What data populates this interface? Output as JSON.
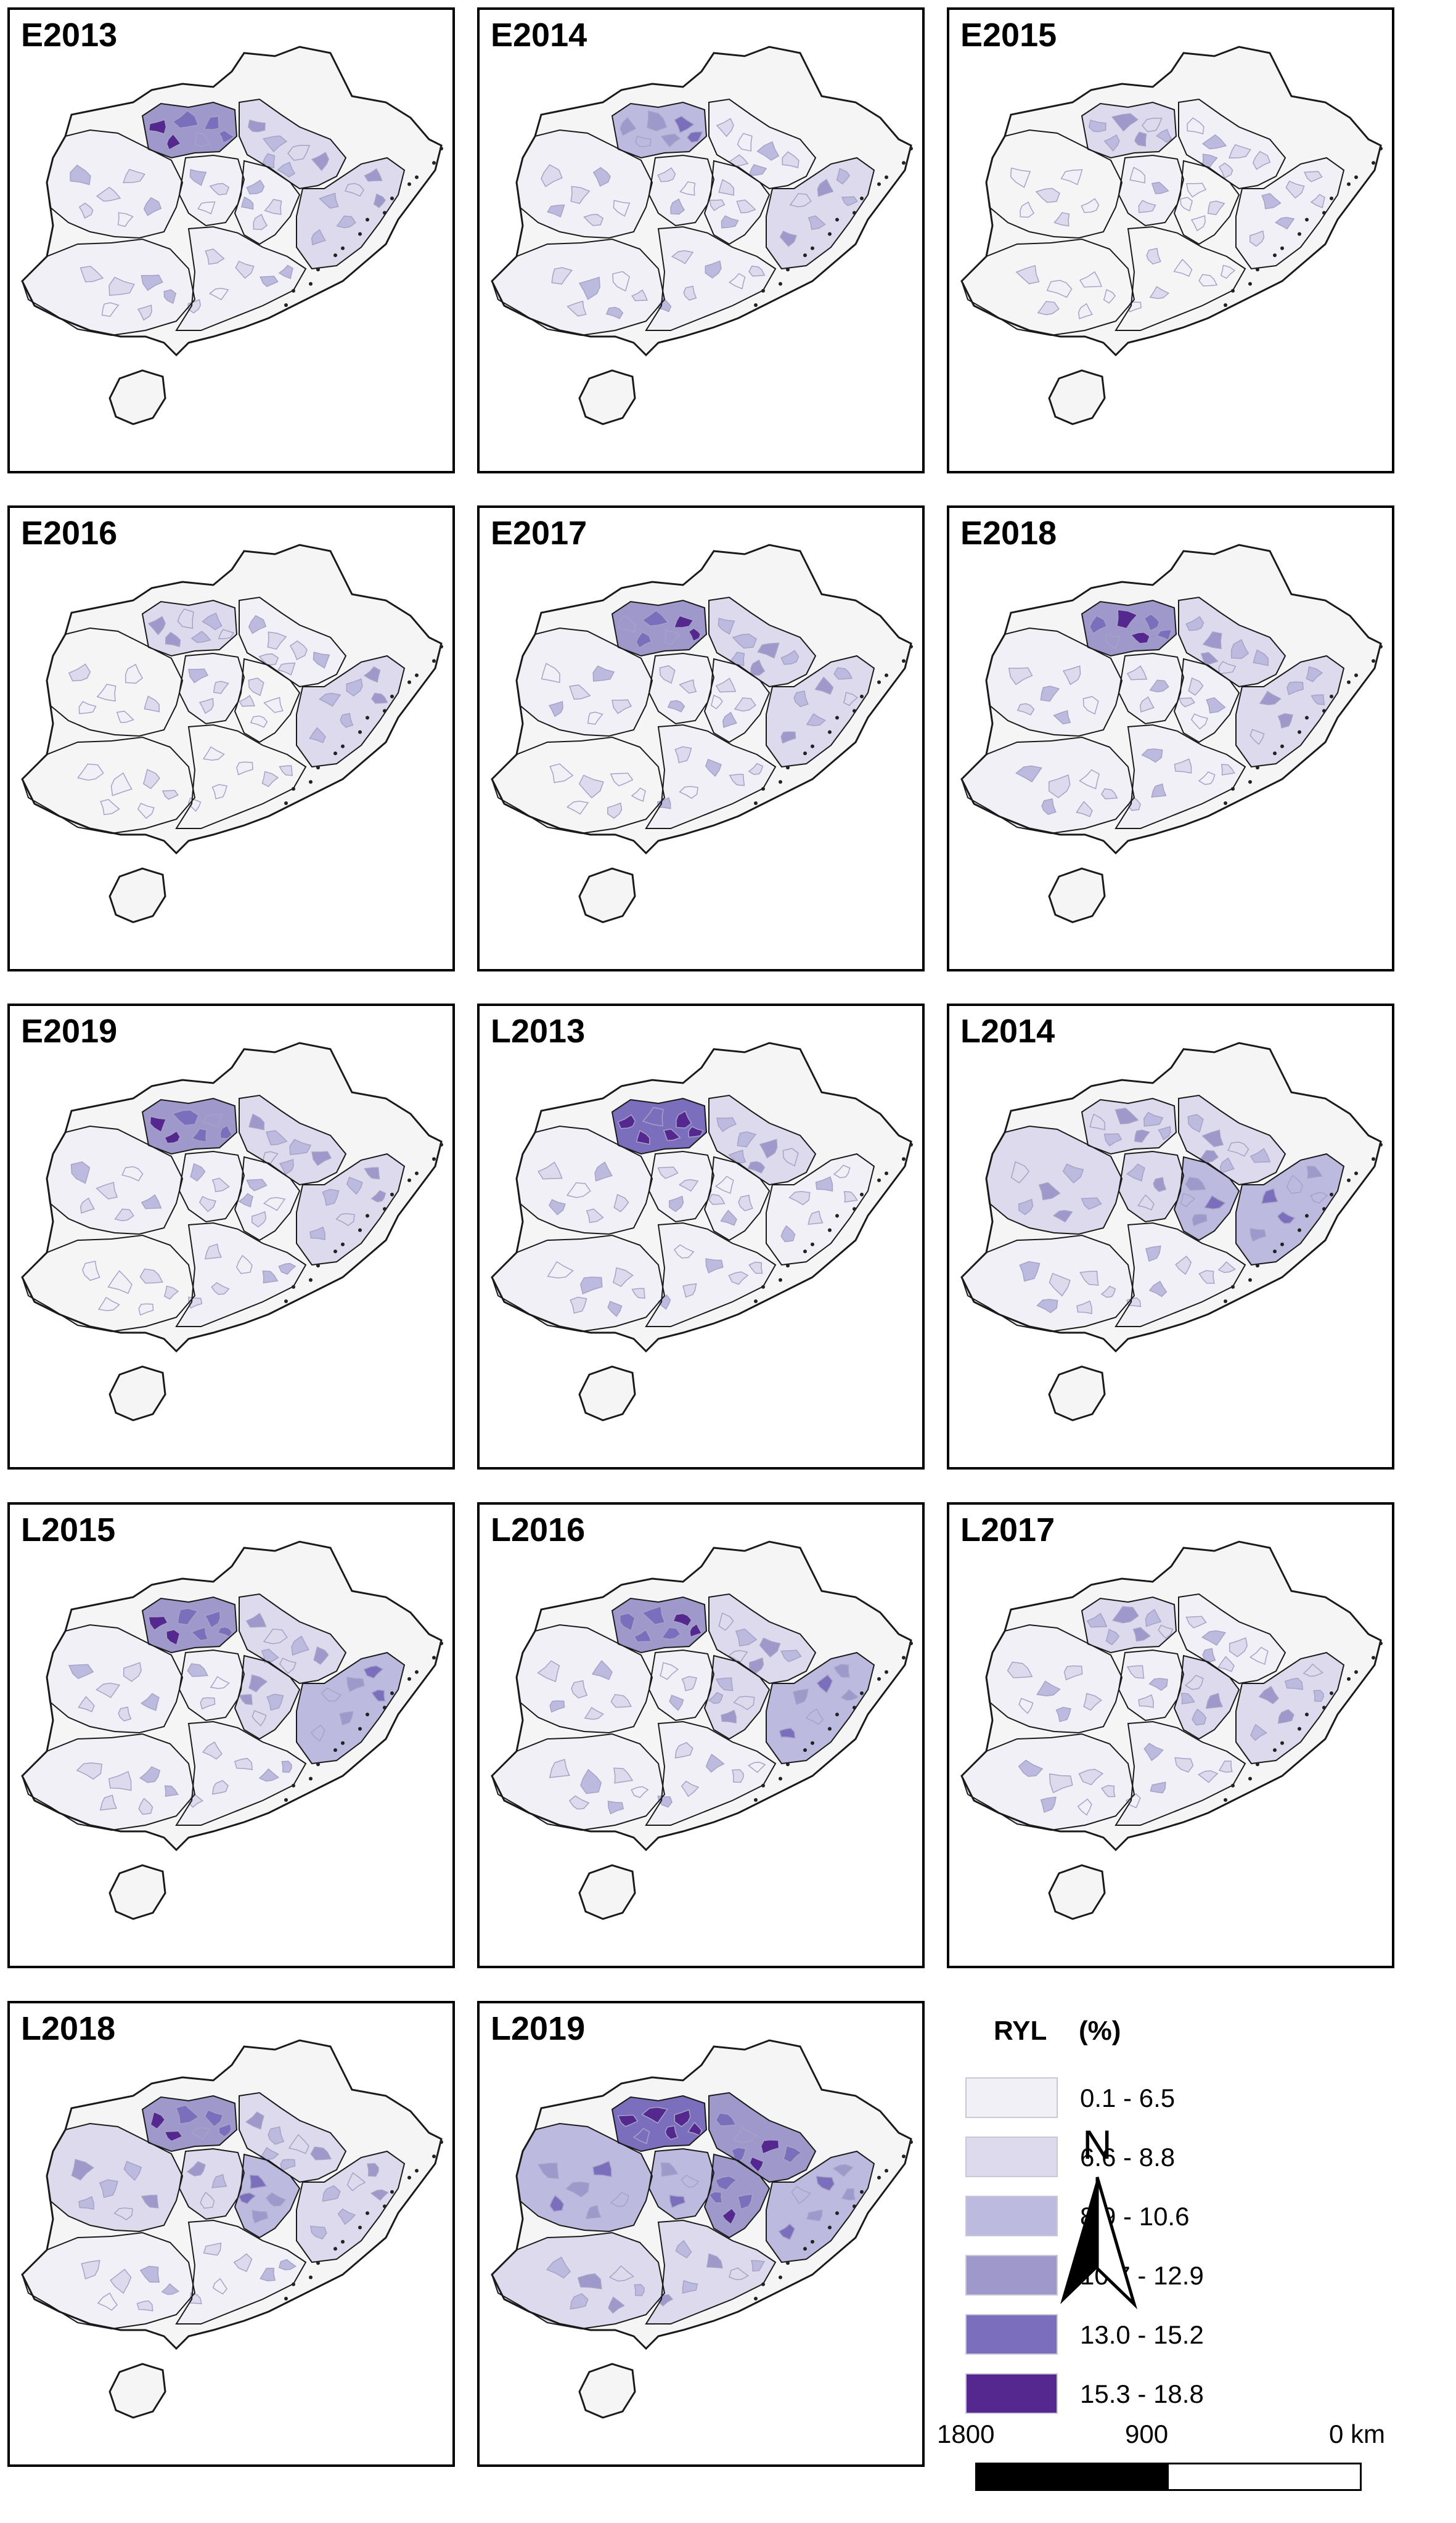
{
  "panels": [
    {
      "label": "E2013",
      "fills": {
        "a": 4,
        "b": 2,
        "c": 1,
        "d": 1,
        "e": 1,
        "f": 1,
        "g": 2,
        "h": 1
      }
    },
    {
      "label": "E2014",
      "fills": {
        "a": 3,
        "b": 1,
        "c": 1,
        "d": 1,
        "e": 1,
        "f": 1,
        "g": 2,
        "h": 1
      }
    },
    {
      "label": "E2015",
      "fills": {
        "a": 2,
        "b": 1,
        "c": 0,
        "d": 1,
        "e": 0,
        "f": 0,
        "g": 1,
        "h": 0
      }
    },
    {
      "label": "E2016",
      "fills": {
        "a": 2,
        "b": 1,
        "c": 0,
        "d": 1,
        "e": 0,
        "f": 0,
        "g": 2,
        "h": 0
      }
    },
    {
      "label": "E2017",
      "fills": {
        "a": 4,
        "b": 2,
        "c": 1,
        "d": 1,
        "e": 1,
        "f": 0,
        "g": 2,
        "h": 1
      }
    },
    {
      "label": "E2018",
      "fills": {
        "a": 4,
        "b": 2,
        "c": 1,
        "d": 1,
        "e": 1,
        "f": 1,
        "g": 2,
        "h": 1
      }
    },
    {
      "label": "E2019",
      "fills": {
        "a": 4,
        "b": 2,
        "c": 1,
        "d": 1,
        "e": 1,
        "f": 0,
        "g": 2,
        "h": 1
      }
    },
    {
      "label": "L2013",
      "fills": {
        "a": 5,
        "b": 2,
        "c": 1,
        "d": 1,
        "e": 1,
        "f": 1,
        "g": 1,
        "h": 1
      }
    },
    {
      "label": "L2014",
      "fills": {
        "a": 2,
        "b": 2,
        "c": 2,
        "d": 2,
        "e": 3,
        "f": 1,
        "g": 3,
        "h": 1
      }
    },
    {
      "label": "L2015",
      "fills": {
        "a": 4,
        "b": 2,
        "c": 1,
        "d": 1,
        "e": 2,
        "f": 1,
        "g": 3,
        "h": 1
      }
    },
    {
      "label": "L2016",
      "fills": {
        "a": 4,
        "b": 2,
        "c": 1,
        "d": 1,
        "e": 2,
        "f": 1,
        "g": 3,
        "h": 1
      }
    },
    {
      "label": "L2017",
      "fills": {
        "a": 2,
        "b": 1,
        "c": 1,
        "d": 1,
        "e": 2,
        "f": 1,
        "g": 2,
        "h": 1
      }
    },
    {
      "label": "L2018",
      "fills": {
        "a": 4,
        "b": 2,
        "c": 2,
        "d": 2,
        "e": 3,
        "f": 1,
        "g": 2,
        "h": 1
      }
    },
    {
      "label": "L2019",
      "fills": {
        "a": 5,
        "b": 4,
        "c": 3,
        "d": 3,
        "e": 4,
        "f": 2,
        "g": 3,
        "h": 2
      }
    }
  ],
  "legend": {
    "title": "RYL",
    "unit": "(%)",
    "classes": [
      {
        "label": "0.1 - 6.5",
        "color": "#f1f0f7"
      },
      {
        "label": "6.6 - 8.8",
        "color": "#dcdaec"
      },
      {
        "label": "8.9 - 10.6",
        "color": "#bcbadf"
      },
      {
        "label": "10.7 - 12.9",
        "color": "#9e98cb"
      },
      {
        "label": "13.0 - 15.2",
        "color": "#7b6ebc"
      },
      {
        "label": "15.3 - 18.8",
        "color": "#54288f"
      }
    ]
  },
  "north_arrow": {
    "label": "N"
  },
  "scale_bar": {
    "labels": [
      "1800",
      "900",
      "0 km"
    ]
  },
  "colors": {
    "land": "#f5f5f5",
    "province_border": "#1a1a1a",
    "county_border": "#a6a3c6"
  }
}
